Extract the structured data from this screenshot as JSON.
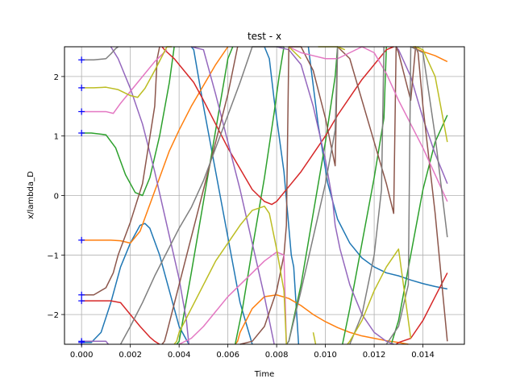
{
  "chart_data": {
    "type": "line",
    "title": "test - x",
    "xlabel": "Time",
    "ylabel": "x/lambda_D",
    "xlim": [
      -0.0007,
      0.0157
    ],
    "ylim": [
      -2.5,
      2.5
    ],
    "wrap": true,
    "grid": true,
    "xticks": [
      0.0,
      0.002,
      0.004,
      0.006,
      0.008,
      0.01,
      0.012,
      0.014
    ],
    "xtick_labels": [
      "0.000",
      "0.002",
      "0.004",
      "0.006",
      "0.008",
      "0.010",
      "0.012",
      "0.014"
    ],
    "yticks": [
      -2,
      -1,
      0,
      1,
      2
    ],
    "ytick_labels": [
      "−2",
      "−1",
      "0",
      "1",
      "2"
    ],
    "markers": {
      "x": 0.0,
      "y": [
        2.28,
        1.81,
        1.41,
        1.05,
        -0.75,
        -1.67,
        -1.77,
        -2.45,
        -2.47
      ],
      "color": "#0000ff",
      "symbol": "+"
    },
    "series": [
      {
        "color": "#1f77b4",
        "x": [
          0.0,
          0.0004,
          0.0008,
          0.0012,
          0.0016,
          0.002,
          0.0024,
          0.0026,
          0.0028,
          0.0032,
          0.0036,
          0.004,
          0.0044,
          0.0045,
          0.0046,
          0.005,
          0.0055,
          0.006,
          0.0065,
          0.007,
          0.0075,
          0.0077,
          0.0079,
          0.0083,
          0.0086,
          0.0087,
          0.0089,
          0.0093,
          0.0097,
          0.0101,
          0.0105,
          0.011,
          0.0115,
          0.012,
          0.0125,
          0.013,
          0.0135,
          0.014,
          0.0145,
          0.015
        ],
        "y": [
          -2.47,
          -2.47,
          -2.3,
          -1.8,
          -1.2,
          -0.8,
          -0.5,
          -0.47,
          -0.55,
          -1.0,
          -1.6,
          -2.2,
          -2.5,
          2.5,
          2.45,
          1.5,
          0.4,
          -0.7,
          -1.8,
          -2.5,
          2.5,
          2.3,
          1.6,
          0.4,
          -1.0,
          -1.2,
          -2.5,
          2.5,
          1.2,
          0.2,
          -0.4,
          -0.8,
          -1.05,
          -1.2,
          -1.3,
          -1.35,
          -1.42,
          -1.48,
          -1.53,
          -1.57
        ]
      },
      {
        "color": "#ff7f0e",
        "x": [
          0.0,
          0.0005,
          0.0012,
          0.0016,
          0.002,
          0.0024,
          0.0028,
          0.0032,
          0.0036,
          0.004,
          0.0045,
          0.005,
          0.0055,
          0.006,
          0.0063,
          0.0064,
          0.0065,
          0.007,
          0.0075,
          0.008,
          0.0085,
          0.009,
          0.0095,
          0.01,
          0.0105,
          0.011,
          0.0115,
          0.012,
          0.0125,
          0.013,
          0.0134,
          0.0136,
          0.0138,
          0.014,
          0.0145,
          0.015
        ],
        "y": [
          -0.75,
          -0.75,
          -0.75,
          -0.76,
          -0.8,
          -0.6,
          -0.15,
          0.3,
          0.75,
          1.1,
          1.5,
          1.85,
          2.2,
          2.5,
          -2.5,
          -2.45,
          -2.3,
          -1.9,
          -1.7,
          -1.67,
          -1.73,
          -1.85,
          -2.0,
          -2.12,
          -2.22,
          -2.3,
          -2.36,
          -2.4,
          -2.44,
          -2.47,
          -2.5,
          2.5,
          2.45,
          2.42,
          2.35,
          2.25
        ]
      },
      {
        "color": "#2ca02c",
        "x": [
          0.0,
          0.0004,
          0.001,
          0.0014,
          0.0018,
          0.0022,
          0.0025,
          0.0028,
          0.0032,
          0.0036,
          0.0038,
          0.0039,
          0.004,
          0.0045,
          0.005,
          0.0055,
          0.006,
          0.0062,
          0.0063,
          0.0066,
          0.007,
          0.0075,
          0.0079,
          0.0081,
          0.0083,
          0.0084,
          0.0085,
          0.009,
          0.0095,
          0.01,
          0.0104,
          0.0105,
          0.0107,
          0.011,
          0.0115,
          0.012,
          0.0124,
          0.0125,
          0.0127,
          0.013,
          0.0135,
          0.014,
          0.0145,
          0.015
        ],
        "y": [
          1.05,
          1.05,
          1.02,
          0.8,
          0.35,
          0.05,
          0.0,
          0.3,
          1.0,
          1.9,
          2.5,
          -2.5,
          -2.45,
          -1.3,
          -0.1,
          1.1,
          2.3,
          2.5,
          -2.5,
          -1.9,
          -0.9,
          0.3,
          1.4,
          2.0,
          2.5,
          -2.5,
          -2.45,
          -1.5,
          -0.3,
          0.9,
          2.0,
          2.5,
          -2.5,
          -1.9,
          -0.8,
          0.3,
          1.3,
          2.5,
          -2.5,
          -2.1,
          -1.0,
          0.1,
          0.9,
          1.35
        ]
      },
      {
        "color": "#d62728",
        "x": [
          0.0,
          0.0005,
          0.0012,
          0.0016,
          0.002,
          0.0024,
          0.0028,
          0.003,
          0.0032,
          0.0033,
          0.0034,
          0.0038,
          0.0042,
          0.0046,
          0.005,
          0.0055,
          0.006,
          0.0065,
          0.007,
          0.0075,
          0.0078,
          0.008,
          0.0085,
          0.009,
          0.0095,
          0.01,
          0.0105,
          0.011,
          0.0115,
          0.012,
          0.0125,
          0.0128,
          0.0129,
          0.013,
          0.0135,
          0.014,
          0.0145,
          0.015
        ],
        "y": [
          -1.77,
          -1.77,
          -1.77,
          -1.8,
          -2.0,
          -2.2,
          -2.38,
          -2.45,
          -2.5,
          2.5,
          2.45,
          2.3,
          2.1,
          1.9,
          1.6,
          1.2,
          0.8,
          0.45,
          0.1,
          -0.1,
          -0.15,
          -0.1,
          0.15,
          0.4,
          0.7,
          1.0,
          1.35,
          1.65,
          1.95,
          2.2,
          2.45,
          2.5,
          -2.5,
          -2.47,
          -2.4,
          -2.1,
          -1.7,
          -1.3
        ]
      },
      {
        "color": "#9467bd",
        "x": [
          0.0,
          0.0004,
          0.001,
          0.0011,
          0.0012,
          0.0015,
          0.002,
          0.0025,
          0.003,
          0.0035,
          0.004,
          0.0043,
          0.0044,
          0.0045,
          0.005,
          0.0055,
          0.006,
          0.0065,
          0.007,
          0.0075,
          0.0078,
          0.0079,
          0.008,
          0.0085,
          0.009,
          0.0095,
          0.01,
          0.0103,
          0.0104,
          0.0106,
          0.011,
          0.0115,
          0.012,
          0.0125,
          0.0128,
          0.0129,
          0.013,
          0.0135,
          0.014,
          0.0145,
          0.015
        ],
        "y": [
          -2.45,
          -2.45,
          -2.45,
          -2.5,
          2.5,
          2.3,
          1.8,
          1.2,
          0.4,
          -0.5,
          -1.4,
          -2.1,
          -2.5,
          2.5,
          2.45,
          1.7,
          0.9,
          0.1,
          -0.8,
          -1.7,
          -2.3,
          -2.5,
          2.5,
          2.45,
          2.2,
          1.5,
          0.6,
          -0.1,
          -0.5,
          -0.9,
          -1.5,
          -2.0,
          -2.3,
          -2.45,
          -2.5,
          2.5,
          2.45,
          2.0,
          1.3,
          0.7,
          0.2
        ]
      },
      {
        "color": "#8c564b",
        "x": [
          0.0,
          0.0005,
          0.001,
          0.0013,
          0.0015,
          0.002,
          0.0025,
          0.003,
          0.0031,
          0.0032,
          0.0033,
          0.0034,
          0.0035,
          0.004,
          0.0045,
          0.005,
          0.0055,
          0.006,
          0.0063,
          0.0064,
          0.0065,
          0.007,
          0.0075,
          0.008,
          0.0083,
          0.0084,
          0.0085,
          0.009,
          0.0095,
          0.01,
          0.0104,
          0.0105,
          0.011,
          0.0115,
          0.012,
          0.0125,
          0.0128,
          0.0129,
          0.013,
          0.0135,
          0.0137,
          0.0138,
          0.014,
          0.0145,
          0.015
        ],
        "y": [
          -1.67,
          -1.67,
          -1.55,
          -1.3,
          -1.0,
          -0.45,
          0.2,
          1.5,
          2.3,
          2.5,
          -2.5,
          -2.45,
          -2.3,
          -1.5,
          -0.7,
          0.1,
          0.9,
          1.7,
          2.3,
          2.5,
          -2.5,
          -2.45,
          -2.2,
          -1.6,
          -1.0,
          -0.5,
          2.5,
          2.5,
          2.1,
          1.3,
          0.5,
          2.5,
          2.3,
          1.6,
          0.9,
          0.2,
          -0.3,
          2.5,
          2.4,
          1.6,
          2.5,
          2.4,
          1.5,
          -0.3,
          -2.45
        ]
      },
      {
        "color": "#e377c2",
        "x": [
          0.0,
          0.0005,
          0.001,
          0.0013,
          0.0016,
          0.002,
          0.0025,
          0.003,
          0.0035,
          0.004,
          0.0045,
          0.005,
          0.0055,
          0.006,
          0.0065,
          0.007,
          0.0075,
          0.008,
          0.0083,
          0.0084,
          0.0085,
          0.009,
          0.0095,
          0.01,
          0.0105,
          0.011,
          0.0115,
          0.012,
          0.0125,
          0.013,
          0.0135,
          0.014,
          0.0145,
          0.015
        ],
        "y": [
          1.41,
          1.41,
          1.41,
          1.38,
          1.55,
          1.75,
          2.0,
          2.25,
          2.45,
          -2.5,
          -2.4,
          -2.2,
          -1.95,
          -1.7,
          -1.5,
          -1.3,
          -1.1,
          -0.95,
          -1.0,
          -2.5,
          2.5,
          2.4,
          2.35,
          2.3,
          2.3,
          2.4,
          2.5,
          2.4,
          2.05,
          1.6,
          1.2,
          0.8,
          0.35,
          -0.1
        ]
      },
      {
        "color": "#7f7f7f",
        "x": [
          0.0,
          0.0005,
          0.001,
          0.0012,
          0.0014,
          0.0015,
          0.0016,
          0.002,
          0.0025,
          0.003,
          0.0035,
          0.004,
          0.0045,
          0.005,
          0.0055,
          0.006,
          0.0065,
          0.007,
          0.0075,
          0.008,
          0.0083,
          0.0084,
          0.0085,
          0.009,
          0.0095,
          0.01,
          0.0104,
          0.0105,
          0.011,
          0.0115,
          0.012,
          0.0123,
          0.0124,
          0.0125,
          0.013,
          0.0134,
          0.0135,
          0.014,
          0.0145,
          0.015
        ],
        "y": [
          2.28,
          2.28,
          2.3,
          2.38,
          2.47,
          2.5,
          -2.5,
          -2.2,
          -1.8,
          -1.35,
          -0.95,
          -0.55,
          -0.2,
          0.25,
          0.8,
          1.35,
          1.9,
          2.5,
          2.5,
          2.5,
          2.5,
          -2.5,
          -2.45,
          -1.6,
          -0.7,
          0.2,
          1.1,
          2.5,
          -2.5,
          -2.0,
          -1.0,
          0.1,
          2.5,
          -2.5,
          -2.2,
          -1.5,
          2.5,
          2.4,
          1.0,
          -0.7
        ]
      },
      {
        "color": "#bcbd22",
        "x": [
          0.0,
          0.0005,
          0.001,
          0.0015,
          0.002,
          0.0023,
          0.0026,
          0.003,
          0.0035,
          0.0037,
          0.0038,
          0.0039,
          0.004,
          0.0045,
          0.005,
          0.0055,
          0.006,
          0.0065,
          0.007,
          0.0075,
          0.0077,
          0.008,
          0.0083,
          0.0084,
          0.0085,
          0.009,
          0.0095,
          0.0096,
          0.0097,
          0.01,
          0.0105,
          0.0108,
          0.0109,
          0.011,
          0.0115,
          0.012,
          0.0125,
          0.013,
          0.0135,
          0.0136,
          0.0137,
          0.014,
          0.0145,
          0.015
        ],
        "y": [
          1.81,
          1.81,
          1.82,
          1.78,
          1.68,
          1.65,
          1.8,
          2.1,
          2.5,
          2.5,
          -2.5,
          -2.45,
          -2.3,
          -1.9,
          -1.5,
          -1.1,
          -0.8,
          -0.5,
          -0.25,
          -0.18,
          -0.3,
          -0.9,
          -1.6,
          -2.5,
          2.5,
          2.3,
          -2.3,
          -2.5,
          2.5,
          2.5,
          2.5,
          2.45,
          -2.5,
          -2.45,
          -2.1,
          -1.6,
          -1.2,
          -0.9,
          -2.4,
          2.5,
          2.5,
          2.45,
          2.0,
          0.9
        ]
      }
    ]
  }
}
